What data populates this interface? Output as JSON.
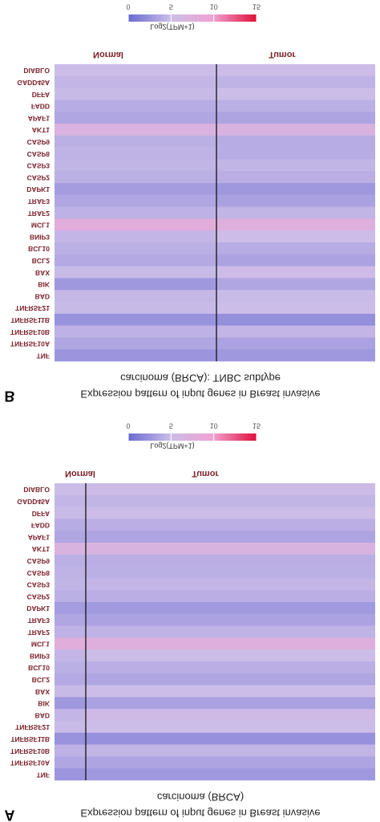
{
  "chart_data": [
    {
      "type": "heatmap",
      "panel": "B",
      "title_lines": [
        "Expression pattern of input genes in Breast invasive",
        "carcinoma (BRCA): TNBC subtype"
      ],
      "genes": [
        "DIABLO",
        "GADD45A",
        "DFFA",
        "FADD",
        "APAF1",
        "AKT1",
        "CASP9",
        "CASP8",
        "CASP3",
        "CASP2",
        "DAPK1",
        "TRAF3",
        "TRAF2",
        "MCL1",
        "BNIP3",
        "BCL10",
        "BCL2",
        "BAX",
        "BIK",
        "BAD",
        "TNFRSF21",
        "TNFRSF11B",
        "TNFRSF10B",
        "TNFRSF10A",
        "TNF"
      ],
      "series": [
        {
          "name": "Normal",
          "values": [
            5.0,
            4.6,
            4.8,
            4.0,
            3.6,
            7.0,
            4.2,
            4.4,
            4.5,
            4.2,
            3.0,
            3.6,
            4.3,
            8.0,
            4.6,
            4.2,
            3.8,
            4.8,
            2.8,
            4.7,
            4.8,
            2.4,
            4.3,
            3.6,
            2.6
          ]
        },
        {
          "name": "Tumor",
          "values": [
            5.2,
            4.4,
            5.0,
            4.2,
            3.5,
            6.8,
            4.0,
            4.0,
            4.5,
            4.1,
            2.8,
            3.3,
            4.5,
            7.5,
            5.2,
            4.0,
            3.4,
            5.2,
            3.6,
            4.9,
            5.0,
            2.2,
            4.6,
            3.4,
            2.8
          ]
        }
      ],
      "colorbar": {
        "label": "Log2(TPM+1)",
        "lim": [
          0,
          15
        ],
        "ticks": [
          0,
          5,
          10,
          15
        ]
      }
    },
    {
      "type": "heatmap",
      "panel": "A",
      "title_lines": [
        "Expression pattern of input genes in Breast invasive",
        "carcinoma (BRCA)"
      ],
      "genes": [
        "DIABLO",
        "GADD45A",
        "DFFA",
        "FADD",
        "APAF1",
        "AKT1",
        "CASP9",
        "CASP8",
        "CASP3",
        "CASP2",
        "DAPK1",
        "TRAF3",
        "TRAF2",
        "MCL1",
        "BNIP3",
        "BCL10",
        "BCL2",
        "BAX",
        "BIK",
        "BAD",
        "TNFRSF21",
        "TNFRSF11B",
        "TNFRSF10B",
        "TNFRSF10A",
        "TNF"
      ],
      "series": [
        {
          "name": "Normal",
          "values": [
            5.0,
            4.6,
            4.8,
            4.0,
            3.6,
            6.8,
            4.2,
            4.4,
            4.5,
            4.2,
            3.0,
            3.6,
            4.3,
            8.0,
            4.6,
            4.2,
            3.8,
            4.8,
            2.8,
            4.6,
            4.8,
            2.4,
            4.3,
            3.6,
            2.6
          ]
        },
        {
          "name": "Tumor",
          "values": [
            5.3,
            4.5,
            5.0,
            4.1,
            3.5,
            6.9,
            4.1,
            4.2,
            4.6,
            4.1,
            2.9,
            3.4,
            4.4,
            7.6,
            5.0,
            4.1,
            3.6,
            5.0,
            3.3,
            5.6,
            5.0,
            2.3,
            4.5,
            3.5,
            2.8
          ]
        }
      ],
      "colorbar": {
        "label": "Log2(TPM+1)",
        "lim": [
          0,
          15
        ],
        "ticks": [
          0,
          5,
          10,
          15
        ]
      }
    }
  ]
}
